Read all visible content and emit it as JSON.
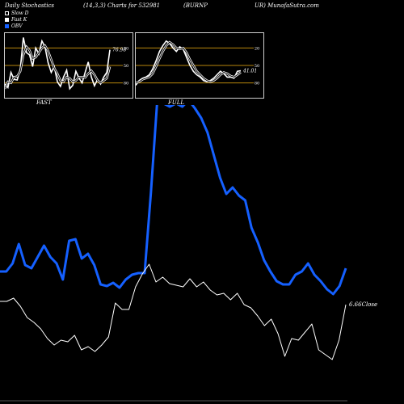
{
  "header": {
    "title": "Daily Stochastics",
    "params": "(14,3,3) Charts for 532981",
    "symbol_a": "(BURNP",
    "symbol_b": "UR) MunafaSutra.com"
  },
  "legend": [
    {
      "label": "Slow  D"
    },
    {
      "label": "Fast K"
    },
    {
      "label": "OBV"
    }
  ],
  "panels": {
    "fast_label": "FAST",
    "full_label": "FULL"
  },
  "main": {
    "close_label": "6.66Close"
  },
  "colors": {
    "background": "#000000",
    "obv": "#1560ff",
    "price": "#ffffff",
    "level_lines": "#b8860b",
    "panel_border": "#cfcfcf"
  },
  "chart_data": [
    {
      "type": "line",
      "title": "FAST",
      "ylim": [
        0,
        100
      ],
      "level_lines": [
        20,
        50,
        80
      ],
      "y_ticks": [
        "80",
        "50",
        "20"
      ],
      "last_value_label": "76.98",
      "series": [
        {
          "name": "Fast K",
          "values": [
            18,
            12,
            38,
            26,
            25,
            44,
            98,
            72,
            68,
            48,
            80,
            70,
            92,
            82,
            55,
            38,
            48,
            22,
            14,
            30,
            42,
            10,
            16,
            40,
            28,
            20,
            38,
            56,
            30,
            15,
            26,
            18,
            30,
            38,
            77
          ]
        },
        {
          "name": "Slow  D",
          "values": [
            10,
            22,
            20,
            30,
            31,
            40,
            68,
            82,
            76,
            62,
            64,
            72,
            80,
            84,
            75,
            60,
            45,
            36,
            24,
            22,
            30,
            28,
            22,
            24,
            30,
            30,
            29,
            36,
            41,
            34,
            24,
            20,
            24,
            28,
            48
          ]
        }
      ]
    },
    {
      "type": "line",
      "title": "FULL",
      "ylim": [
        0,
        100
      ],
      "level_lines": [
        20,
        50,
        80
      ],
      "y_ticks": [
        "80",
        "50",
        "20"
      ],
      "last_value_label": "41.01",
      "series": [
        {
          "name": "Fast K",
          "values": [
            16,
            24,
            28,
            30,
            34,
            44,
            58,
            74,
            84,
            92,
            88,
            80,
            74,
            82,
            78,
            64,
            50,
            40,
            34,
            30,
            24,
            22,
            24,
            28,
            34,
            40,
            36,
            30,
            30,
            28,
            40,
            41
          ]
        },
        {
          "name": "Slow  D",
          "values": [
            20,
            22,
            26,
            28,
            30,
            36,
            48,
            62,
            74,
            84,
            90,
            86,
            80,
            78,
            80,
            72,
            60,
            50,
            40,
            34,
            28,
            24,
            22,
            24,
            28,
            34,
            38,
            36,
            32,
            30,
            34,
            38
          ]
        }
      ]
    },
    {
      "type": "line",
      "series": [
        {
          "name": "OBV",
          "values": [
            10.6,
            10.6,
            11.1,
            12.3,
            11.0,
            10.8,
            11.5,
            12.2,
            11.5,
            11.1,
            10.1,
            12.5,
            12.6,
            11.4,
            11.7,
            11.0,
            9.8,
            9.7,
            9.9,
            9.6,
            10.1,
            10.4,
            10.5,
            10.5,
            15.5,
            21.1,
            21.0,
            20.8,
            21.0,
            20.8,
            21.2,
            20.7,
            20.1,
            19.2,
            17.8,
            16.4,
            15.4,
            15.8,
            15.3,
            15.0,
            13.3,
            12.4,
            11.3,
            10.6,
            10.0,
            9.8,
            9.8,
            10.4,
            10.6,
            11.1,
            10.4,
            10.0,
            9.5,
            9.2,
            9.7,
            10.8
          ]
        },
        {
          "name": "Close",
          "values": [
            6.9,
            6.9,
            7.1,
            6.6,
            5.9,
            5.6,
            5.2,
            4.6,
            4.2,
            4.5,
            4.4,
            4.8,
            3.9,
            4.1,
            3.8,
            4.2,
            4.7,
            6.8,
            6.4,
            6.4,
            7.8,
            8.6,
            9.2,
            8.1,
            8.4,
            8.0,
            7.9,
            7.8,
            8.3,
            7.8,
            8.1,
            7.6,
            7.3,
            7.4,
            7.0,
            7.4,
            6.7,
            6.5,
            6.0,
            5.4,
            5.8,
            4.9,
            3.5,
            4.6,
            4.5,
            5.0,
            5.5,
            3.9,
            3.6,
            3.3,
            4.5,
            6.7
          ]
        }
      ],
      "last_value_label": "6.66Close"
    }
  ]
}
